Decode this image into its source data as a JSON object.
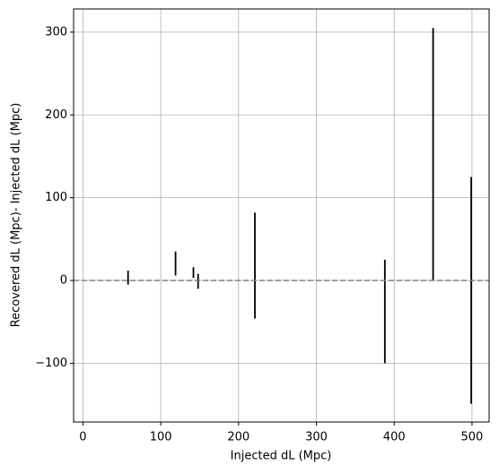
{
  "chart_data": {
    "type": "errorbar",
    "x_label": "Injected dL (Mpc)",
    "y_label": "Recovered dL (Mpc)- Injected dL (Mpc)",
    "x": [
      58,
      119,
      142,
      148,
      221,
      388,
      450,
      499
    ],
    "low": [
      -5,
      6,
      3,
      -10,
      -46,
      -100,
      0,
      -149
    ],
    "high": [
      12,
      35,
      16,
      8,
      82,
      25,
      305,
      125
    ],
    "color": "#000000",
    "reference_line": 0,
    "reference_color": "#808080",
    "xlim": [
      -12,
      522
    ],
    "ylim": [
      -171,
      328
    ],
    "xticks": [
      0,
      100,
      200,
      300,
      400,
      500
    ],
    "yticks": [
      {
        "value": -100,
        "label": "−100"
      },
      0,
      100,
      200,
      300
    ],
    "grid": true
  }
}
